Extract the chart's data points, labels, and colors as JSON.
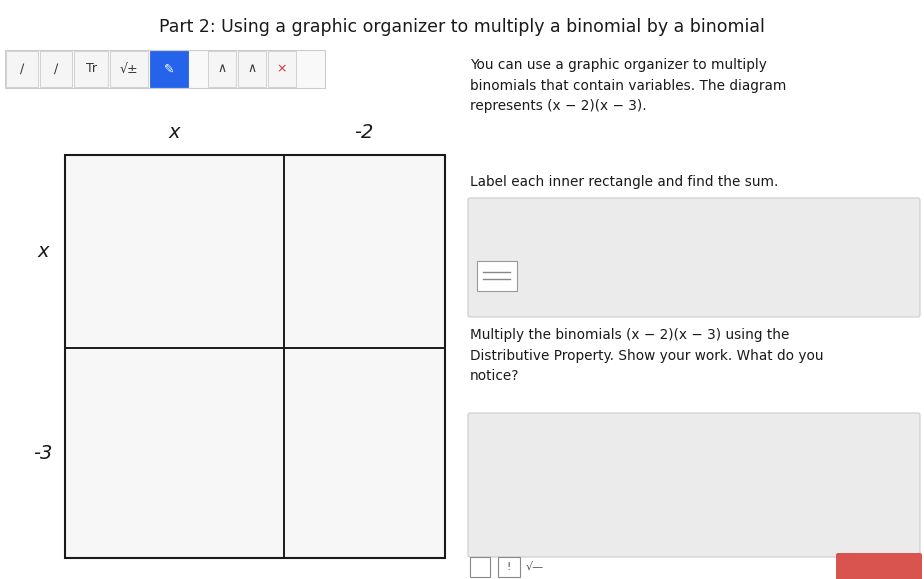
{
  "title": "Part 2: Using a graphic organizer to multiply a binomial by a binomial",
  "title_fontsize": 12.5,
  "title_color": "#1a1a1a",
  "bg_color": "#ffffff",
  "toolbar_highlight_color": "#2563eb",
  "col_labels": [
    "x",
    "-2"
  ],
  "row_labels": [
    "x",
    "-3"
  ],
  "right_text_1": "You can use a graphic organizer to multiply\nbinomials that contain variables. The diagram\nrepresents (x − 2)(x − 3).",
  "right_text_2": "Label each inner rectangle and find the sum.",
  "right_text_3": "Multiply the binomials (x − 2)(x − 3) using the\nDistributive Property. Show your work. What do you\nnotice?",
  "input_box_color": "#ebebeb",
  "input_box_border": "#cccccc",
  "grid_line_color": "#1a1a1a",
  "label_color": "#1a1a1a",
  "text_color": "#1a1a1a",
  "toolbar_border": "#cccccc",
  "toolbar_btn_bg": "#f5f5f5",
  "red_btn_color": "#d9534f",
  "bottom_icon_color": "#666666"
}
